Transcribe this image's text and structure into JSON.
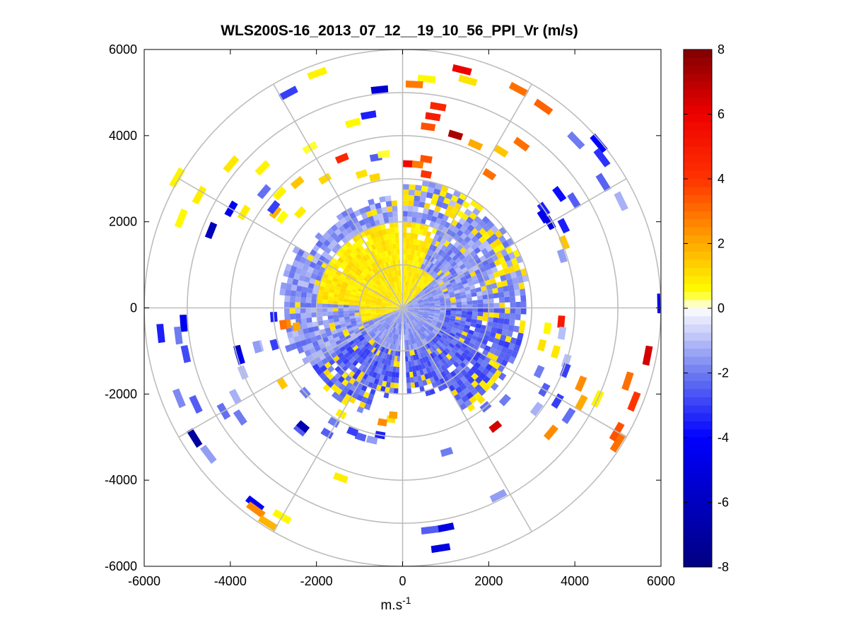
{
  "chart_data": {
    "type": "heatmap",
    "subtype": "polar-ppi-scan",
    "title": "WLS200S-16_2013_07_12__19_10_56_PPI_Vr (m/s)",
    "xlabel": "m.s",
    "xlabel_superscript": "-1",
    "ylabel": "",
    "xlim": [
      -6000,
      6000
    ],
    "ylim": [
      -6000,
      6000
    ],
    "x_ticks": [
      -6000,
      -4000,
      -2000,
      0,
      2000,
      4000,
      6000
    ],
    "y_ticks": [
      6000,
      4000,
      2000,
      0,
      -2000,
      -4000,
      -6000
    ],
    "x_tick_labels": [
      "-6000",
      "-4000",
      "-2000",
      "0",
      "2000",
      "4000",
      "6000"
    ],
    "y_tick_labels": [
      "6000",
      "4000",
      "2000",
      "0",
      "-2000",
      "-4000",
      "-6000"
    ],
    "polar_grid": {
      "ring_radii": [
        1000,
        2000,
        3000,
        4000,
        5000,
        6000
      ],
      "spoke_angles_deg": [
        0,
        30,
        60,
        90,
        120,
        150,
        180,
        210,
        240,
        270,
        300,
        330
      ]
    },
    "colorbar": {
      "min": -8,
      "max": 8,
      "ticks": [
        8,
        6,
        4,
        2,
        0,
        -2,
        -4,
        -6,
        -8
      ],
      "tick_labels": [
        "8",
        "6",
        "4",
        "2",
        "0",
        "-2",
        "-4",
        "-6",
        "-8"
      ],
      "colormap_stops": [
        {
          "value": -8,
          "color": "#000080"
        },
        {
          "value": -6,
          "color": "#0000c0"
        },
        {
          "value": -4,
          "color": "#0000ff"
        },
        {
          "value": -2,
          "color": "#6e7cf0"
        },
        {
          "value": 0,
          "color": "#ffffff"
        },
        {
          "value": 0.5,
          "color": "#ffff00"
        },
        {
          "value": 2,
          "color": "#ffaa00"
        },
        {
          "value": 4,
          "color": "#ff3300"
        },
        {
          "value": 6,
          "color": "#ee0000"
        },
        {
          "value": 8,
          "color": "#800000"
        }
      ]
    },
    "inner_scan": {
      "max_range": 3000,
      "note": "dense returns within ~3000 m; positive (yellow) in NW quadrant, negative (blue) elsewhere"
    },
    "outer_returns": [
      {
        "az": 158,
        "r": 5550,
        "v": 0.6
      },
      {
        "az": 151,
        "r": 5400,
        "v": 0.8
      },
      {
        "az": 140,
        "r": 5200,
        "v": 0.9
      },
      {
        "az": 135,
        "r": 4600,
        "v": 0.7
      },
      {
        "az": 120,
        "r": 4300,
        "v": 0.4
      },
      {
        "az": 105,
        "r": 4450,
        "v": 0.6
      },
      {
        "az": 100,
        "r": 4550,
        "v": -3.5
      },
      {
        "az": 158,
        "r": 4800,
        "v": -6.2
      },
      {
        "az": 150,
        "r": 4600,
        "v": -4.5
      },
      {
        "az": 149,
        "r": 4300,
        "v": 0.8
      },
      {
        "az": 140,
        "r": 4200,
        "v": -2.2
      },
      {
        "az": 137,
        "r": 3900,
        "v": 0.7
      },
      {
        "az": 130,
        "r": 3800,
        "v": 1.5
      },
      {
        "az": 121,
        "r": 3500,
        "v": 1.2
      },
      {
        "az": 112,
        "r": 3750,
        "v": 4.5
      },
      {
        "az": 107,
        "r": 3250,
        "v": 1.0
      },
      {
        "az": 102,
        "r": 3100,
        "v": 1.2
      },
      {
        "az": 143,
        "r": 3700,
        "v": 1.8
      },
      {
        "az": 143,
        "r": 3500,
        "v": 0.5
      },
      {
        "az": 142,
        "r": 3800,
        "v": -3.0
      },
      {
        "az": 137,
        "r": 3250,
        "v": 0.8
      },
      {
        "az": 100,
        "r": 3550,
        "v": -2.5
      },
      {
        "az": 97,
        "r": 3600,
        "v": 0.4
      },
      {
        "az": 84,
        "r": 5350,
        "v": 0.6
      },
      {
        "az": 87,
        "r": 5200,
        "v": 2.8
      },
      {
        "az": 76,
        "r": 5700,
        "v": 6.0
      },
      {
        "az": 74,
        "r": 5500,
        "v": 1.0
      },
      {
        "az": 62,
        "r": 5750,
        "v": 3.0
      },
      {
        "az": 55,
        "r": 5700,
        "v": 3.2
      },
      {
        "az": 80,
        "r": 4750,
        "v": 4.5
      },
      {
        "az": 81,
        "r": 4500,
        "v": 5.0
      },
      {
        "az": 82,
        "r": 4250,
        "v": 3.5
      },
      {
        "az": 73,
        "r": 4200,
        "v": 7.2
      },
      {
        "az": 66,
        "r": 4150,
        "v": 2.0
      },
      {
        "az": 58,
        "r": 4300,
        "v": 1.5
      },
      {
        "az": 54,
        "r": 4700,
        "v": 3.0
      },
      {
        "az": 81,
        "r": 3500,
        "v": 3.5
      },
      {
        "az": 80,
        "r": 3150,
        "v": 4.0
      },
      {
        "az": 88,
        "r": 3350,
        "v": 5.8
      },
      {
        "az": 84,
        "r": 3350,
        "v": 2.8
      },
      {
        "az": 57,
        "r": 3700,
        "v": 3.0
      },
      {
        "az": 44,
        "r": 5600,
        "v": -2.0
      },
      {
        "az": 40,
        "r": 5950,
        "v": -4.0
      },
      {
        "az": 37,
        "r": 5800,
        "v": -3.2
      },
      {
        "az": 32,
        "r": 5500,
        "v": -2.4
      },
      {
        "az": 26,
        "r": 5650,
        "v": -1.2
      },
      {
        "az": 35,
        "r": 4000,
        "v": -3.5
      },
      {
        "az": 33,
        "r": 3900,
        "v": -4.5
      },
      {
        "az": 30,
        "r": 3950,
        "v": -5.0
      },
      {
        "az": 27,
        "r": 4200,
        "v": -3.5
      },
      {
        "az": 22,
        "r": 4050,
        "v": 1.5
      },
      {
        "az": 18,
        "r": 3900,
        "v": -1.5
      },
      {
        "az": 36,
        "r": 4500,
        "v": -3.8
      },
      {
        "az": 32,
        "r": 4700,
        "v": -2.5
      },
      {
        "az": 1,
        "r": 6000,
        "v": -4.5
      },
      {
        "az": -5,
        "r": 3700,
        "v": 5.0
      },
      {
        "az": -9,
        "r": 3750,
        "v": -1.0
      },
      {
        "az": -8,
        "r": 3400,
        "v": 0.6
      },
      {
        "az": -15,
        "r": 3350,
        "v": 1.0
      },
      {
        "az": -16,
        "r": 3700,
        "v": 0.9
      },
      {
        "az": -11,
        "r": 5800,
        "v": 6.5
      },
      {
        "az": -18,
        "r": 5500,
        "v": 3.0
      },
      {
        "az": -22,
        "r": 5800,
        "v": 4.0
      },
      {
        "az": -25,
        "r": 5000,
        "v": 0.7
      },
      {
        "az": -23,
        "r": 4500,
        "v": 2.5
      },
      {
        "az": -18,
        "r": 4000,
        "v": -1.0
      },
      {
        "az": -21,
        "r": 4050,
        "v": -3.0
      },
      {
        "az": -30,
        "r": 3800,
        "v": -2.5
      },
      {
        "az": -25,
        "r": 3500,
        "v": -2.0
      },
      {
        "az": -31,
        "r": 4200,
        "v": -3.0
      },
      {
        "az": -28,
        "r": 4700,
        "v": 2.0
      },
      {
        "az": -33,
        "r": 4600,
        "v": -2.2
      },
      {
        "az": -40,
        "r": 4500,
        "v": 2.5
      },
      {
        "az": -37,
        "r": 3900,
        "v": -1.2
      },
      {
        "az": -30,
        "r": 5750,
        "v": 3.5
      },
      {
        "az": -32,
        "r": 5900,
        "v": 3.0
      },
      {
        "az": -42,
        "r": 3200,
        "v": -2.0
      },
      {
        "az": -50,
        "r": 3000,
        "v": -2.2
      },
      {
        "az": -52,
        "r": 3500,
        "v": 6.5
      },
      {
        "az": -63,
        "r": 4900,
        "v": -1.5
      },
      {
        "az": -79,
        "r": 5200,
        "v": -5.0
      },
      {
        "az": -81,
        "r": 5650,
        "v": -5.0
      },
      {
        "az": -83,
        "r": 5200,
        "v": -2.5
      },
      {
        "az": -73,
        "r": 3500,
        "v": -2.0
      },
      {
        "az": -96,
        "r": 2600,
        "v": 1.0
      },
      {
        "az": -95,
        "r": 2500,
        "v": 2.2
      },
      {
        "az": -100,
        "r": 2700,
        "v": 2.5
      },
      {
        "az": -100,
        "r": 3000,
        "v": -3.5
      },
      {
        "az": -103,
        "r": 3150,
        "v": -1.5
      },
      {
        "az": -108,
        "r": 3150,
        "v": -2.5
      },
      {
        "az": -120,
        "r": 2850,
        "v": 0.8
      },
      {
        "az": -121,
        "r": 3100,
        "v": -2.0
      },
      {
        "az": -121,
        "r": 3400,
        "v": -2.5
      },
      {
        "az": -130,
        "r": 3700,
        "v": -2.5
      },
      {
        "az": -146,
        "r": 4550,
        "v": -2.0
      },
      {
        "az": -150,
        "r": 4800,
        "v": -2.2
      },
      {
        "az": -152,
        "r": 4400,
        "v": -1.2
      },
      {
        "az": -148,
        "r": 3300,
        "v": 1.5
      },
      {
        "az": -165,
        "r": 3450,
        "v": -1.0
      },
      {
        "az": -165,
        "r": 3950,
        "v": -6.0
      },
      {
        "az": -163,
        "r": 3950,
        "v": -4.5
      },
      {
        "az": -158,
        "r": 4000,
        "v": -1.0
      },
      {
        "az": -158,
        "r": 5600,
        "v": -1.8
      },
      {
        "az": -148,
        "r": 5700,
        "v": -7.0
      },
      {
        "az": -155,
        "r": 5300,
        "v": -2.5
      },
      {
        "az": -143,
        "r": 5650,
        "v": -1.5
      },
      {
        "az": -127,
        "r": 5700,
        "v": -4.2
      },
      {
        "az": -126,
        "r": 5800,
        "v": 2.5
      },
      {
        "az": -122,
        "r": 5900,
        "v": 1.8
      },
      {
        "az": -120,
        "r": 5600,
        "v": 0.6
      },
      {
        "az": -130,
        "r": 3600,
        "v": -6.5
      },
      {
        "az": -139,
        "r": 3000,
        "v": -2.0
      },
      {
        "az": -112,
        "r": 3100,
        "v": -3.0
      },
      {
        "az": -110,
        "r": 4200,
        "v": 0.8
      },
      {
        "az": -176,
        "r": 5100,
        "v": -4.5
      },
      {
        "az": -173,
        "r": 5250,
        "v": -2.0
      },
      {
        "az": -174,
        "r": 5650,
        "v": -3.5
      },
      {
        "az": -168,
        "r": 5150,
        "v": -2.8
      },
      {
        "az": -176,
        "r": 3000,
        "v": -3.5
      },
      {
        "az": -164,
        "r": 3100,
        "v": -3.0
      },
      {
        "az": -165,
        "r": 3500,
        "v": -1.5
      },
      {
        "az": -172,
        "r": 2700,
        "v": 2.5
      },
      {
        "az": -170,
        "r": 2500,
        "v": 2.0
      },
      {
        "az": -172,
        "r": 2800,
        "v": 3.0
      },
      {
        "az": 150,
        "r": 6050,
        "v": 0.7
      },
      {
        "az": 110,
        "r": 5800,
        "v": 0.7
      },
      {
        "az": 118,
        "r": 5650,
        "v": -3.0
      },
      {
        "az": 96,
        "r": 5100,
        "v": -5.5
      }
    ]
  }
}
